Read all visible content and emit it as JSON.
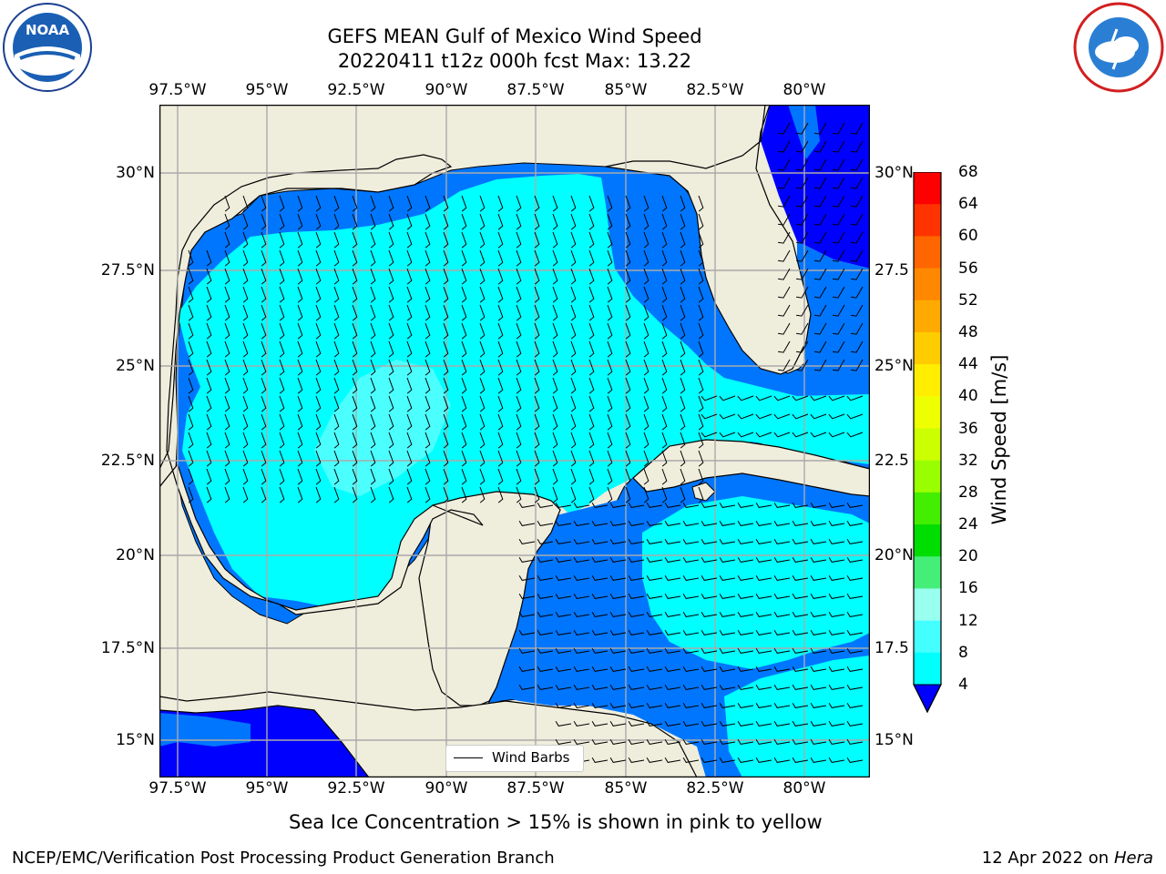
{
  "header": {
    "title_line1": "GEFS MEAN Gulf of Mexico Wind Speed",
    "title_line2": "20220411 t12z 000h fcst   Max: 13.22"
  },
  "logos": {
    "left": {
      "icon": "noaa-logo",
      "text": "NOAA",
      "ring_text": "NATIONAL OCEANIC AND ATMOSPHERIC ADMINISTRATION · U.S. DEPARTMENT OF COMMERCE"
    },
    "right": {
      "icon": "nws-logo",
      "ring_text": "NATIONAL WEATHER SERVICE"
    }
  },
  "map": {
    "lon_labels": [
      "97.5°W",
      "95°W",
      "92.5°W",
      "90°W",
      "87.5°W",
      "85°W",
      "82.5°W",
      "80°W"
    ],
    "lat_labels_left": [
      "30°N",
      "27.5°N",
      "25°N",
      "22.5°N",
      "20°N",
      "17.5°N",
      "15°N"
    ],
    "lat_labels_right": [
      "30°N",
      "27.5",
      "25°N",
      "22.5",
      "20°N",
      "17.5",
      "15°N"
    ],
    "legend_label": "Wind Barbs",
    "colors": {
      "land": "#efeddc",
      "ocean_4_8": "#0076ff",
      "ocean_8_12": "#00ffff",
      "ocean_12_16": "#4cffff",
      "ocean_below_4": "#0000ff",
      "grid": "#aaaaaa"
    }
  },
  "colorbar": {
    "label": "Wind Speed [m/s]",
    "ticks": [
      "68",
      "64",
      "60",
      "56",
      "52",
      "48",
      "44",
      "40",
      "36",
      "32",
      "28",
      "24",
      "20",
      "16",
      "12",
      "8",
      "4"
    ],
    "colors": [
      "#ff0000",
      "#ff3300",
      "#ff6600",
      "#ff8800",
      "#ffaa00",
      "#ffcc00",
      "#ffee00",
      "#eeff00",
      "#ccff00",
      "#99ff00",
      "#44ee00",
      "#00dd00",
      "#44ee77",
      "#99ffee",
      "#44ffff",
      "#00ffff",
      "#0076ff"
    ],
    "extend_color": "#0000ff"
  },
  "notes": {
    "sea_ice": "Sea Ice Concentration > 15% is shown in pink to yellow"
  },
  "footer": {
    "left": "NCEP/EMC/Verification Post Processing Product Generation Branch",
    "right_prefix": "12 Apr 2022 on ",
    "right_host": "Hera"
  }
}
